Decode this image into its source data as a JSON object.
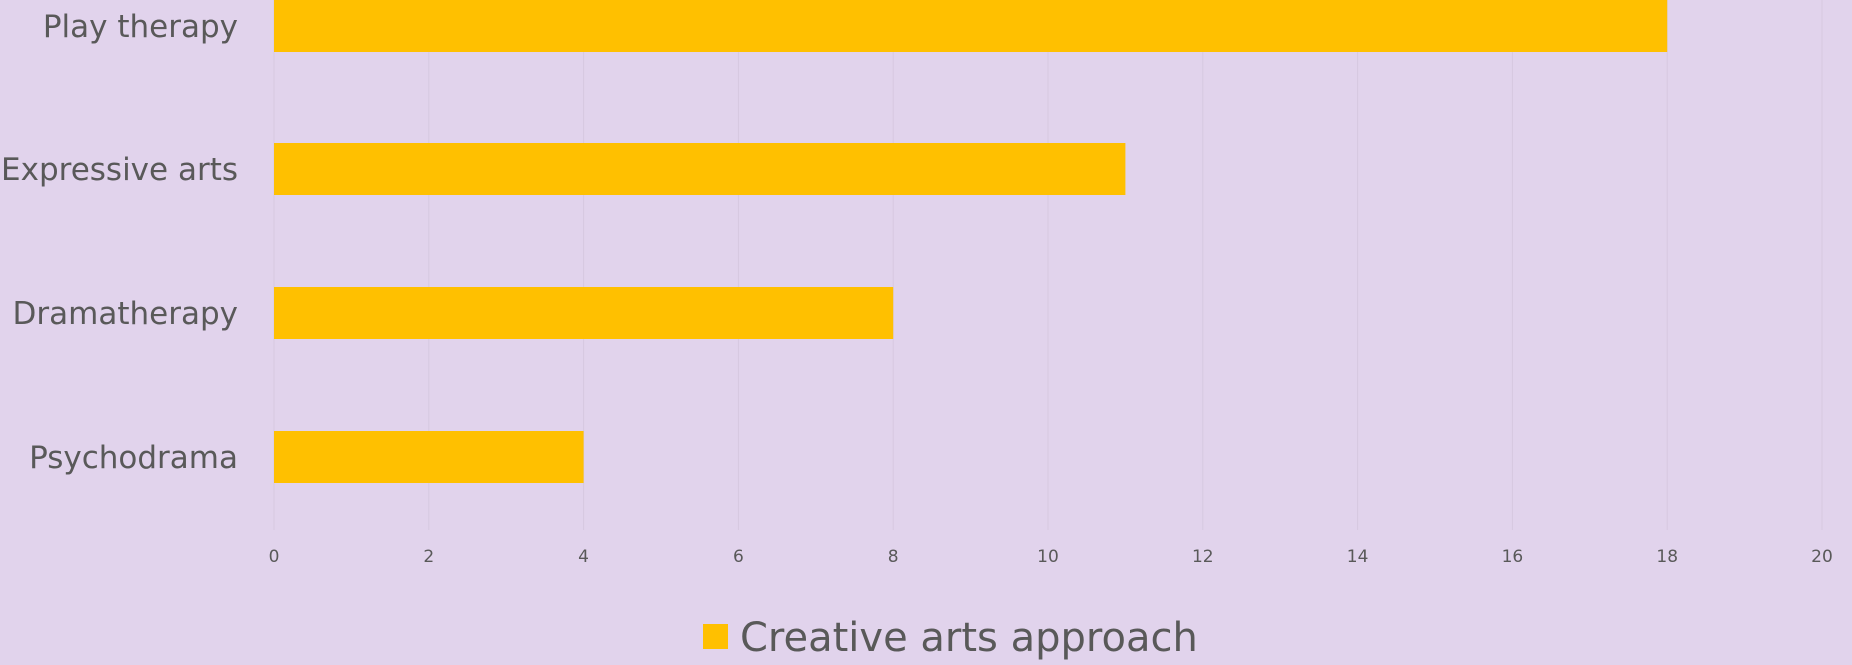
{
  "chart_data": {
    "type": "bar",
    "orientation": "horizontal",
    "categories": [
      "Play therapy",
      "Expressive arts",
      "Dramatherapy",
      "Psychodrama"
    ],
    "series": [
      {
        "name": "Creative arts approach",
        "values": [
          18,
          11,
          8,
          4
        ],
        "color": "#ffc000"
      }
    ],
    "xlim": [
      0,
      20
    ],
    "x_ticks": [
      0,
      2,
      4,
      6,
      8,
      10,
      12,
      14,
      16,
      18,
      20
    ],
    "grid": true,
    "legend_position": "bottom",
    "background_color": "#e1d3ec",
    "text_color": "#595959",
    "gridline_color": "#d6c8e0"
  }
}
